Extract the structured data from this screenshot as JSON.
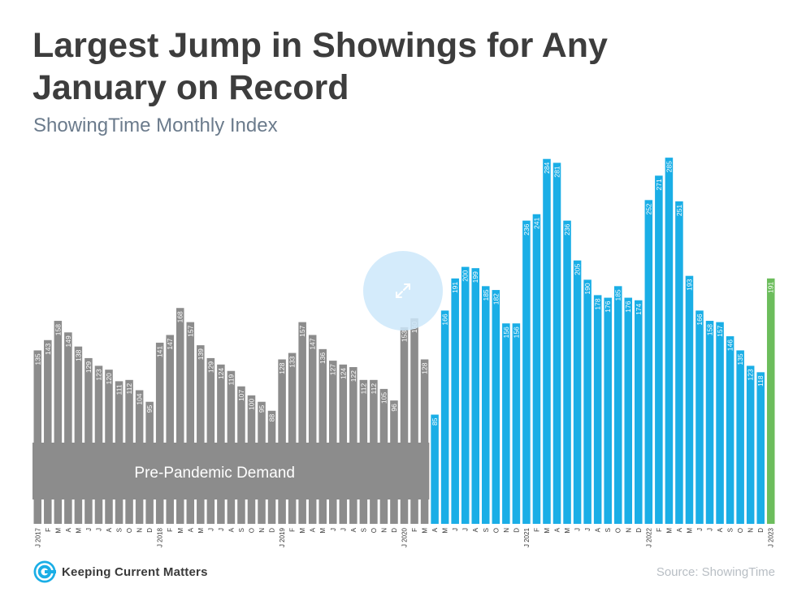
{
  "header": {
    "title_line1": "Largest Jump in Showings for Any",
    "title_line2": "January on Record",
    "subtitle": "ShowingTime Monthly Index"
  },
  "footer": {
    "logo_text": "Keeping Current Matters",
    "source": "Source: ShowingTime"
  },
  "overlay": {
    "icon": "expand-icon"
  },
  "chart_data": {
    "type": "bar",
    "title": "",
    "xlabel": "",
    "ylabel": "",
    "ylim": [
      0,
      300
    ],
    "grid": false,
    "legend": "none",
    "band_label": "Pre-Pandemic Demand",
    "colors": {
      "pre_pandemic": "#8c8c8c",
      "pandemic": "#1aaee6",
      "latest": "#6cbd5c",
      "band": "#8c8c8c"
    },
    "tick_labels": [
      "J 2017",
      "F",
      "M",
      "A",
      "M",
      "J",
      "J",
      "A",
      "S",
      "O",
      "N",
      "D",
      "J 2018",
      "F",
      "M",
      "A",
      "M",
      "J",
      "J",
      "A",
      "S",
      "O",
      "N",
      "D",
      "J 2019",
      "F",
      "M",
      "A",
      "M",
      "J",
      "J",
      "A",
      "S",
      "O",
      "N",
      "D",
      "J 2020",
      "F",
      "M",
      "A",
      "M",
      "J",
      "J",
      "A",
      "S",
      "O",
      "N",
      "D",
      "J 2021",
      "F",
      "M",
      "A",
      "M",
      "J",
      "J",
      "A",
      "S",
      "O",
      "N",
      "D",
      "J 2022",
      "F",
      "M",
      "A",
      "M",
      "J",
      "J",
      "A",
      "S",
      "O",
      "N",
      "D",
      "J 2023"
    ],
    "values": [
      135,
      143,
      158,
      149,
      138,
      129,
      123,
      120,
      111,
      112,
      104,
      95,
      141,
      147,
      168,
      157,
      139,
      129,
      124,
      119,
      107,
      100,
      95,
      88,
      128,
      133,
      157,
      147,
      136,
      127,
      124,
      122,
      112,
      112,
      105,
      96,
      153,
      160,
      128,
      85,
      166,
      191,
      200,
      199,
      185,
      182,
      156,
      156,
      236,
      241,
      284,
      281,
      236,
      205,
      190,
      178,
      176,
      185,
      176,
      174,
      252,
      271,
      285,
      251,
      193,
      166,
      158,
      157,
      146,
      135,
      123,
      118,
      191
    ],
    "series_groups": [
      {
        "color_key": "pre_pandemic",
        "start": 0,
        "end": 38
      },
      {
        "color_key": "pandemic",
        "start": 39,
        "end": 71
      },
      {
        "color_key": "latest",
        "start": 72,
        "end": 72
      }
    ]
  }
}
